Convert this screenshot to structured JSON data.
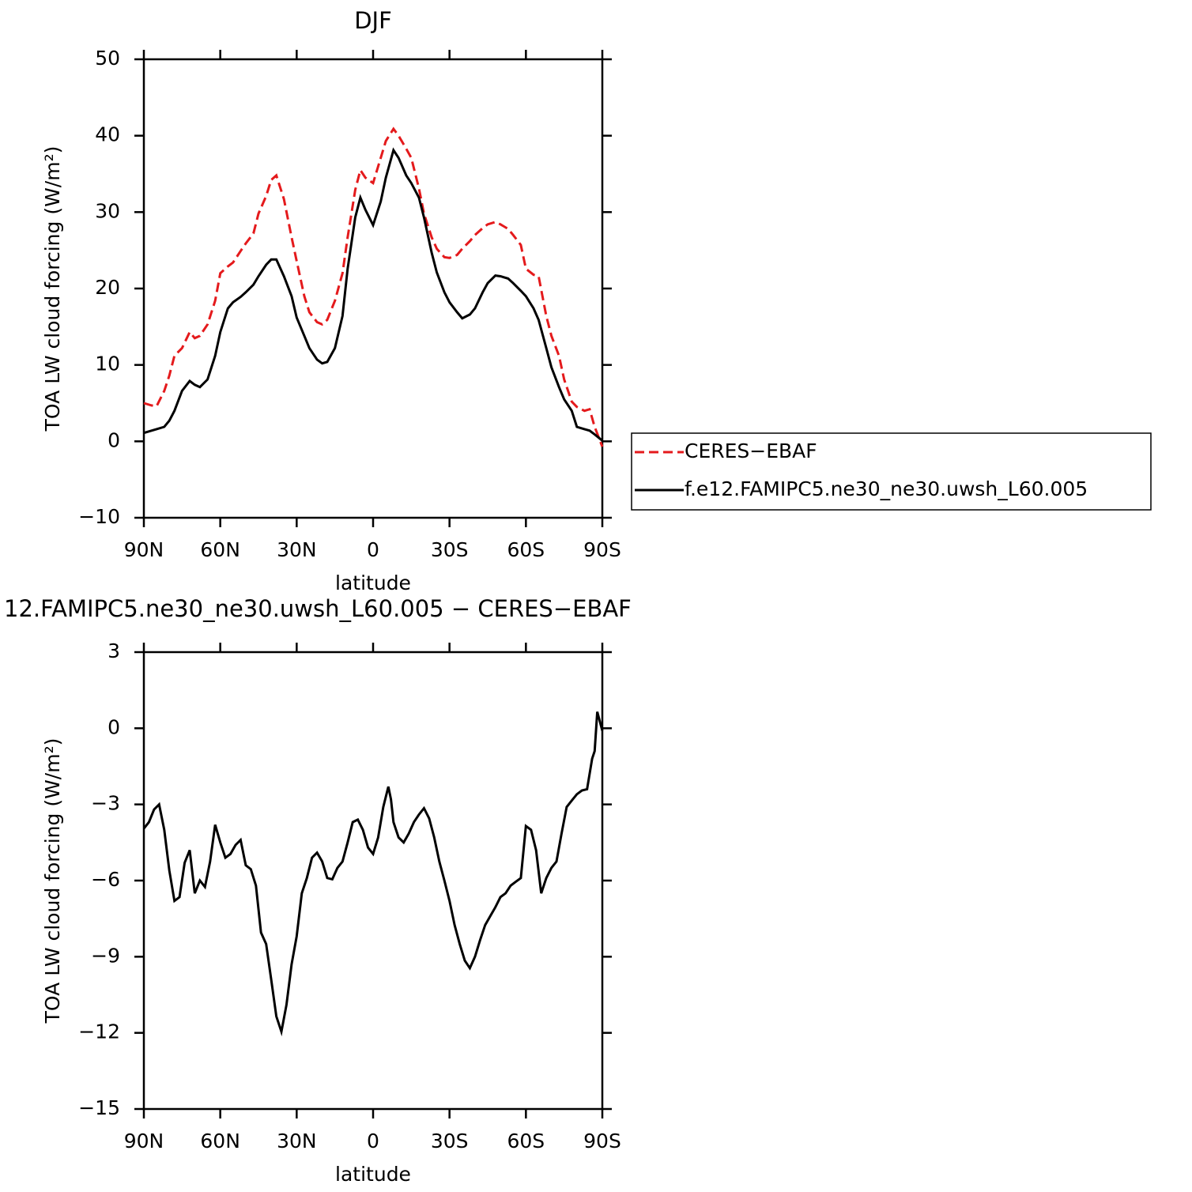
{
  "chart_data": [
    {
      "type": "line",
      "title": "DJF",
      "x_label": "latitude",
      "y_label": "TOA LW cloud forcing (W/m²)",
      "x": [
        90,
        87,
        85,
        82,
        80,
        78,
        75,
        72,
        70,
        68,
        65,
        62,
        60,
        57,
        55,
        52,
        50,
        47,
        45,
        42,
        40,
        38,
        35,
        32,
        30,
        27,
        25,
        22,
        20,
        18,
        15,
        12,
        10,
        7,
        5,
        3,
        0,
        -3,
        -5,
        -8,
        -10,
        -13,
        -15,
        -18,
        -20,
        -23,
        -25,
        -28,
        -30,
        -33,
        -35,
        -38,
        -40,
        -43,
        -45,
        -48,
        -50,
        -53,
        -55,
        -58,
        -60,
        -63,
        -65,
        -68,
        -70,
        -73,
        -75,
        -78,
        -80,
        -83,
        -85,
        -87,
        -90
      ],
      "series": [
        {
          "name": "CERES−EBAF",
          "color": "#e41a1c",
          "line_style": "dashed",
          "values": [
            5.0,
            4.7,
            4.6,
            6.6,
            8.6,
            11.2,
            12.2,
            14.3,
            13.5,
            13.8,
            15.3,
            18.4,
            22.0,
            22.9,
            23.4,
            24.9,
            25.9,
            27.2,
            29.8,
            32.1,
            34.2,
            34.8,
            31.7,
            26.7,
            23.6,
            19.0,
            16.9,
            15.6,
            15.3,
            15.9,
            18.4,
            22.0,
            26.7,
            32.9,
            35.5,
            34.5,
            33.8,
            37.1,
            39.3,
            40.9,
            40.0,
            38.3,
            37.1,
            33.1,
            29.8,
            26.7,
            25.2,
            24.1,
            24.0,
            24.4,
            25.2,
            26.2,
            27.0,
            27.9,
            28.4,
            28.7,
            28.4,
            27.8,
            27.0,
            25.7,
            22.6,
            21.8,
            21.6,
            16.4,
            13.8,
            11.2,
            8.1,
            5.2,
            4.5,
            4.0,
            4.2,
            1.9,
            -0.7
          ]
        },
        {
          "name": "f.e12.FAMIPC5.ne30_ne30.uwsh_L60.005",
          "color": "#000000",
          "line_style": "solid",
          "values": [
            1.1,
            1.4,
            1.6,
            1.9,
            2.7,
            4.0,
            6.6,
            7.9,
            7.4,
            7.1,
            8.1,
            11.2,
            14.3,
            17.4,
            18.2,
            18.9,
            19.5,
            20.5,
            21.6,
            23.1,
            23.8,
            23.8,
            21.6,
            19.0,
            16.2,
            13.8,
            12.2,
            10.7,
            10.2,
            10.4,
            12.2,
            16.4,
            22.6,
            29.3,
            31.9,
            30.3,
            28.3,
            31.4,
            34.5,
            38.1,
            37.1,
            34.8,
            33.8,
            31.9,
            29.3,
            24.7,
            22.1,
            19.5,
            18.2,
            16.9,
            16.1,
            16.6,
            17.4,
            19.5,
            20.7,
            21.7,
            21.6,
            21.3,
            20.7,
            19.7,
            19.0,
            17.4,
            15.9,
            12.2,
            9.7,
            7.1,
            5.5,
            4.0,
            1.9,
            1.6,
            1.4,
            0.9,
            0.1
          ]
        }
      ],
      "xlim": [
        90,
        -90
      ],
      "xticks": [
        {
          "value": 90,
          "label": "90N"
        },
        {
          "value": 60,
          "label": "60N"
        },
        {
          "value": 30,
          "label": "30N"
        },
        0,
        {
          "value": -30,
          "label": "30S"
        },
        {
          "value": -60,
          "label": "60S"
        },
        {
          "value": -90,
          "label": "90S"
        }
      ],
      "ylim": [
        -10,
        50
      ],
      "yticks": [
        {
          "value": -10,
          "label": "−10"
        },
        0,
        10,
        20,
        30,
        40,
        50
      ],
      "legend": "right"
    },
    {
      "type": "line",
      "title": "12.FAMIPC5.ne30_ne30.uwsh_L60.005 − CERES−EBAF",
      "x_label": "latitude",
      "y_label": "TOA LW cloud forcing (W/m²)",
      "x": [
        90,
        88,
        86,
        84,
        82,
        80,
        78,
        76,
        74,
        72,
        70,
        68,
        66,
        64,
        62,
        60,
        58,
        56,
        54,
        52,
        50,
        48,
        46,
        44,
        42,
        40,
        38,
        36,
        34,
        32,
        30,
        28,
        26,
        24,
        22,
        20,
        18,
        16,
        14,
        12,
        10,
        8,
        6,
        4,
        2,
        0,
        -2,
        -4,
        -6,
        -7,
        -8,
        -10,
        -12,
        -14,
        -16,
        -18,
        -20,
        -22,
        -24,
        -26,
        -28,
        -30,
        -32,
        -34,
        -36,
        -38,
        -40,
        -42,
        -44,
        -46,
        -48,
        -50,
        -52,
        -54,
        -56,
        -58,
        -60,
        -62,
        -64,
        -66,
        -68,
        -70,
        -72,
        -74,
        -76,
        -78,
        -80,
        -82,
        -84,
        -86,
        -87,
        -88,
        -90
      ],
      "series": [
        {
          "color": "#000000",
          "line_style": "solid",
          "values": [
            -3.95,
            -3.7,
            -3.2,
            -3.0,
            -4.0,
            -5.6,
            -6.8,
            -6.65,
            -5.3,
            -4.8,
            -6.5,
            -6.0,
            -6.25,
            -5.25,
            -3.8,
            -4.5,
            -5.1,
            -4.95,
            -4.6,
            -4.4,
            -5.4,
            -5.55,
            -6.2,
            -8.05,
            -8.5,
            -9.9,
            -11.35,
            -11.95,
            -10.9,
            -9.3,
            -8.2,
            -6.5,
            -5.9,
            -5.1,
            -4.9,
            -5.25,
            -5.9,
            -5.95,
            -5.5,
            -5.25,
            -4.5,
            -3.7,
            -3.6,
            -4.0,
            -4.7,
            -4.95,
            -4.3,
            -3.1,
            -2.3,
            -2.8,
            -3.7,
            -4.3,
            -4.5,
            -4.15,
            -3.7,
            -3.4,
            -3.15,
            -3.55,
            -4.3,
            -5.25,
            -6.0,
            -6.8,
            -7.75,
            -8.5,
            -9.15,
            -9.45,
            -9.0,
            -8.35,
            -7.75,
            -7.4,
            -7.05,
            -6.65,
            -6.5,
            -6.2,
            -6.05,
            -5.9,
            -3.85,
            -4.0,
            -4.8,
            -6.5,
            -5.9,
            -5.5,
            -5.25,
            -4.15,
            -3.1,
            -2.85,
            -2.6,
            -2.45,
            -2.4,
            -1.2,
            -0.9,
            0.65,
            -0.1
          ]
        }
      ],
      "xlim": [
        90,
        -90
      ],
      "xticks": [
        {
          "value": 90,
          "label": "90N"
        },
        {
          "value": 60,
          "label": "60N"
        },
        {
          "value": 30,
          "label": "30N"
        },
        0,
        {
          "value": -30,
          "label": "30S"
        },
        {
          "value": -60,
          "label": "60S"
        },
        {
          "value": -90,
          "label": "90S"
        }
      ],
      "ylim": [
        -15,
        3
      ],
      "yticks": [
        {
          "value": -15,
          "label": "−15"
        },
        {
          "value": -12,
          "label": "−12"
        },
        {
          "value": -9,
          "label": "−9"
        },
        {
          "value": -6,
          "label": "−6"
        },
        {
          "value": -3,
          "label": "−3"
        },
        0,
        3
      ]
    }
  ]
}
